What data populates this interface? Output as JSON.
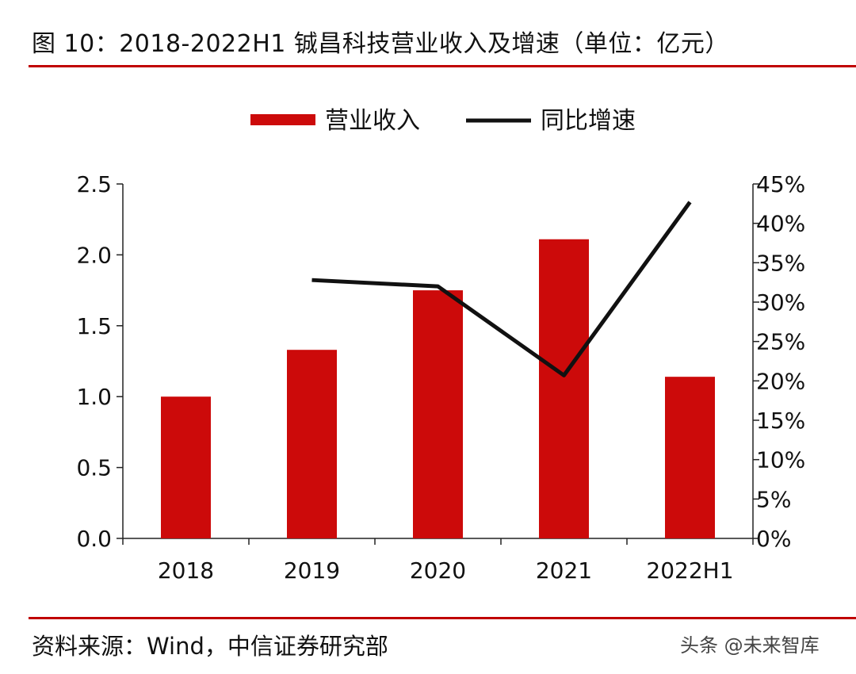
{
  "header": {
    "title": "图 10：2018-2022H1 铖昌科技营业收入及增速（单位：亿元）"
  },
  "footer": {
    "source": "资料来源：Wind，中信证券研究部",
    "watermark": "头条 @未来智库"
  },
  "colors": {
    "bar": "#cc0a0a",
    "line": "#111111",
    "rule": "#c00000"
  },
  "chart_data": {
    "type": "bar",
    "categories": [
      "2018",
      "2019",
      "2020",
      "2021",
      "2022H1"
    ],
    "series": [
      {
        "name": "营业收入",
        "type": "bar",
        "axis": "left",
        "values": [
          1.0,
          1.33,
          1.75,
          2.11,
          1.14
        ]
      },
      {
        "name": "同比增速",
        "type": "line",
        "axis": "right",
        "values": [
          null,
          0.328,
          0.32,
          0.207,
          0.427
        ]
      }
    ],
    "y_left": {
      "min": 0,
      "max": 2.5,
      "ticks": [
        "0.0",
        "0.5",
        "1.0",
        "1.5",
        "2.0",
        "2.5"
      ]
    },
    "y_right": {
      "min": 0,
      "max": 0.45,
      "ticks": [
        "0%",
        "5%",
        "10%",
        "15%",
        "20%",
        "25%",
        "30%",
        "35%",
        "40%",
        "45%"
      ]
    },
    "legend": {
      "position": "top-center"
    }
  }
}
